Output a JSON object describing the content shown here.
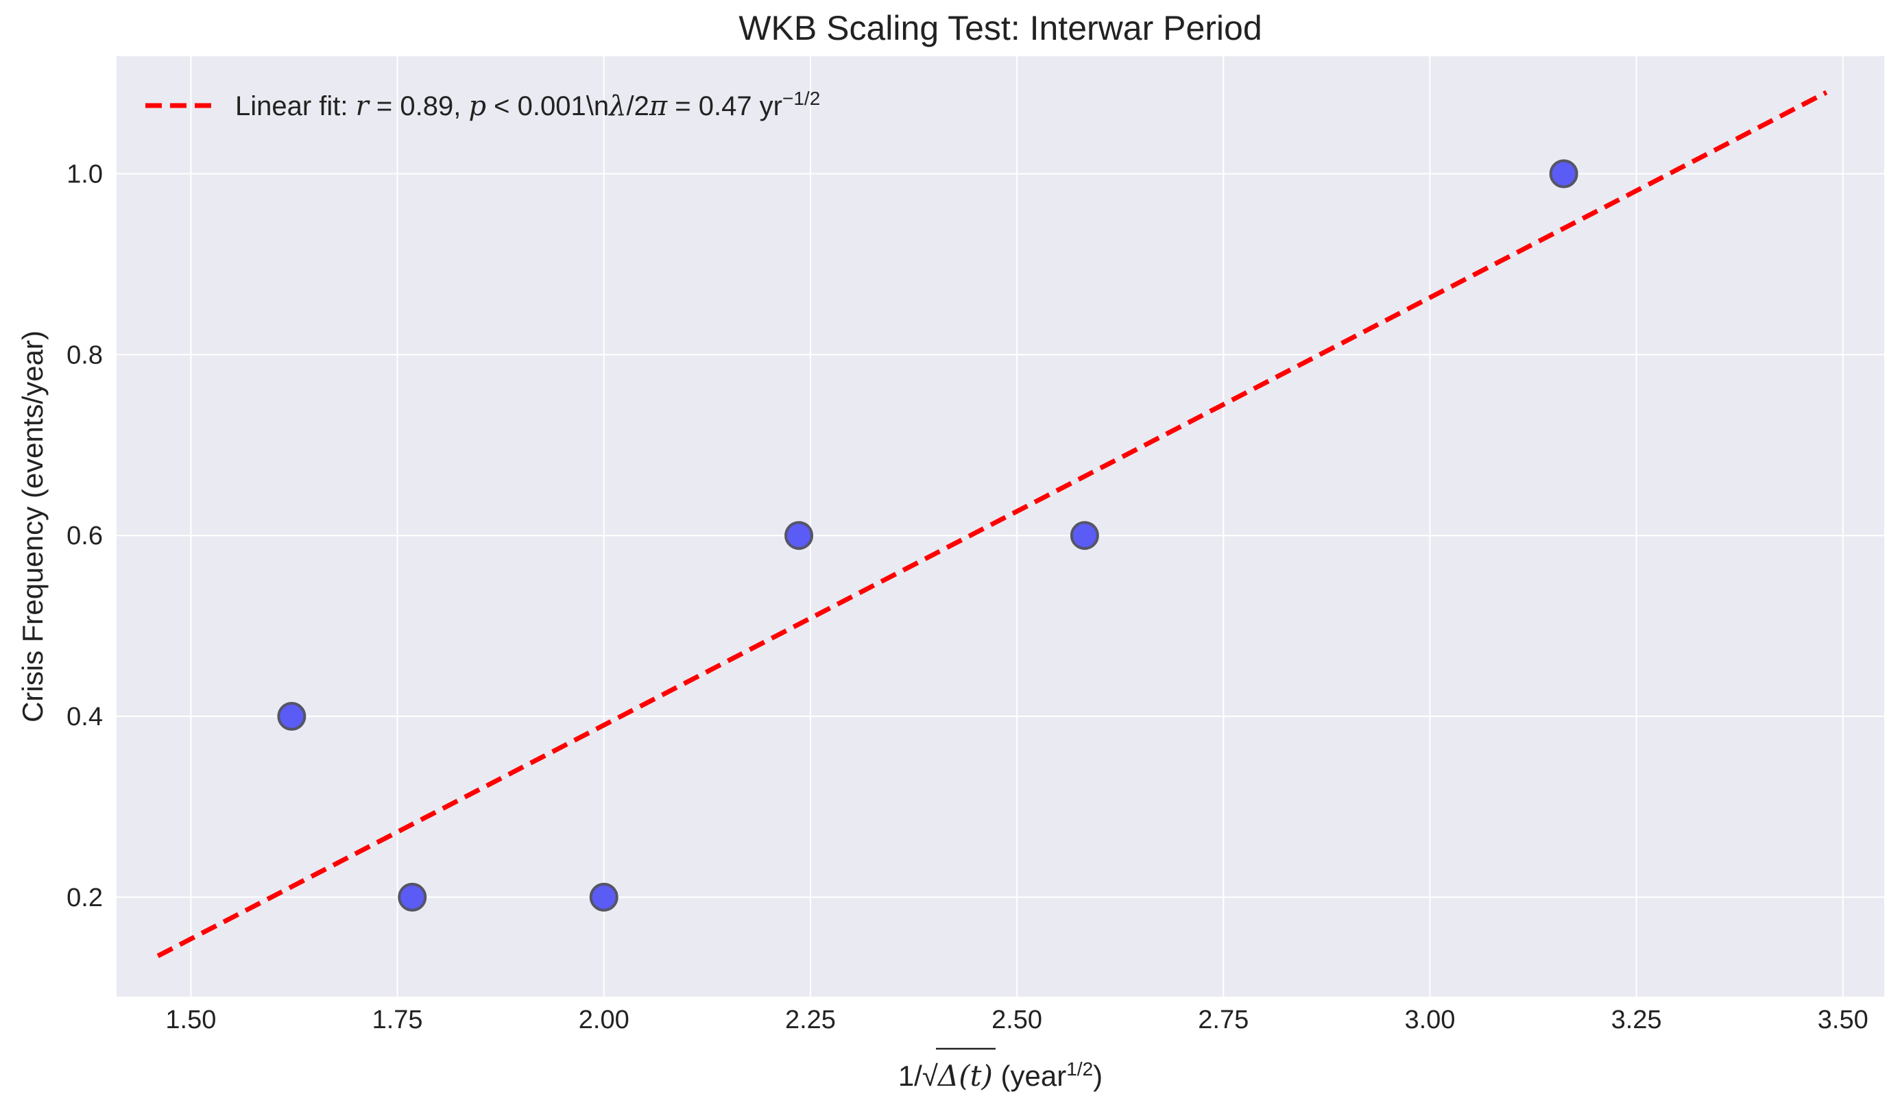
{
  "chart_data": {
    "type": "scatter",
    "title": "WKB Scaling Test: Interwar Period",
    "xlabel": {
      "prefix": "1/√",
      "expr": "Δ(t)",
      "unit_open": " (year",
      "unit_sup": "1/2",
      "unit_close": ")"
    },
    "ylabel": "Crisis Frequency (events/year)",
    "xlim": [
      1.41,
      3.55
    ],
    "ylim": [
      0.09,
      1.13
    ],
    "xticks": [
      1.5,
      1.75,
      2.0,
      2.25,
      2.5,
      2.75,
      3.0,
      3.25,
      3.5
    ],
    "xtick_labels": [
      "1.50",
      "1.75",
      "2.00",
      "2.25",
      "2.50",
      "2.75",
      "3.00",
      "3.25",
      "3.50"
    ],
    "yticks": [
      0.2,
      0.4,
      0.6,
      0.8,
      1.0
    ],
    "ytick_labels": [
      "0.2",
      "0.4",
      "0.6",
      "0.8",
      "1.0"
    ],
    "grid": true,
    "legend_position": "top-left",
    "points": [
      {
        "x": 1.622,
        "y": 0.4
      },
      {
        "x": 1.768,
        "y": 0.2
      },
      {
        "x": 2.0,
        "y": 0.2
      },
      {
        "x": 2.236,
        "y": 0.6
      },
      {
        "x": 2.582,
        "y": 0.6
      },
      {
        "x": 3.162,
        "y": 1.0
      }
    ],
    "fit_line": {
      "x": [
        1.46,
        3.48
      ],
      "y": [
        0.135,
        1.09
      ],
      "legend_parts": {
        "prefix": "Linear fit: ",
        "r_sym": "r",
        "r_val": " = 0.89, ",
        "p_sym": "p",
        "p_val": " < 0.001\\n",
        "lambda_sym": "λ",
        "lambda_mid": "/2",
        "pi_sym": "π",
        "lambda_val": " = 0.47 yr",
        "exp": "−1/2"
      }
    },
    "colors": {
      "background": "#eaeaf2",
      "grid": "#ffffff",
      "point_fill": "#5b5bf5",
      "point_edge": "#555566",
      "fit_line": "#ff0000"
    }
  }
}
